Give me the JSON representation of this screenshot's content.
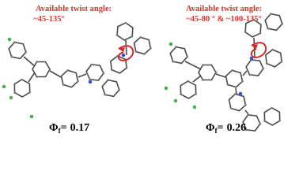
{
  "panels": [
    {
      "annotation": {
        "line1": "Available twist angle:",
        "line2": "~45-135°"
      },
      "yield": {
        "symbol": "Φ",
        "subscript": "f",
        "equals": "=",
        "value": 0.17
      }
    },
    {
      "annotation": {
        "line1": "Available twist angle:",
        "line2": "~45-80 ° & ~100-135°"
      },
      "yield": {
        "symbol": "Φ",
        "subscript": "f",
        "equals": "=",
        "value": 0.26
      }
    }
  ]
}
